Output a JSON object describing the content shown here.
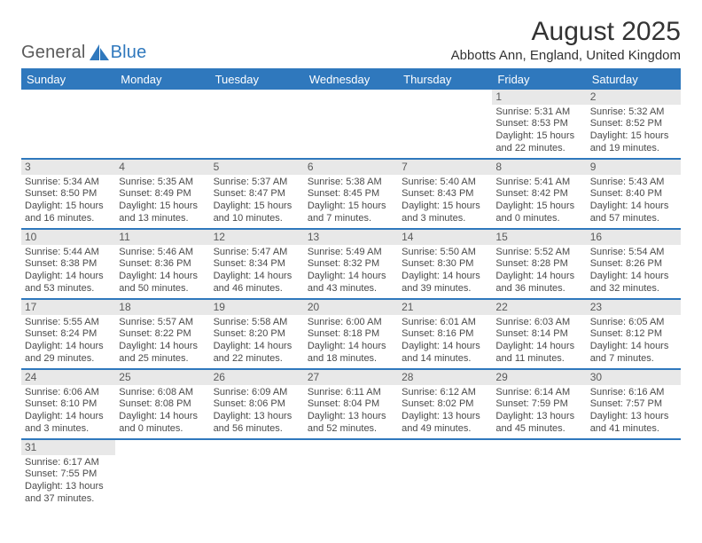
{
  "brand": {
    "text1": "General",
    "text2": "Blue",
    "mark_color": "#2f78bd"
  },
  "title": "August 2025",
  "location": "Abbotts Ann, England, United Kingdom",
  "colors": {
    "accent": "#2f78bd",
    "header_text": "#ffffff",
    "daynum_bg": "#e8e8e8",
    "text": "#4a4a4a"
  },
  "day_headers": [
    "Sunday",
    "Monday",
    "Tuesday",
    "Wednesday",
    "Thursday",
    "Friday",
    "Saturday"
  ],
  "weeks": [
    [
      null,
      null,
      null,
      null,
      null,
      {
        "n": "1",
        "sunrise": "Sunrise: 5:31 AM",
        "sunset": "Sunset: 8:53 PM",
        "daylight": "Daylight: 15 hours and 22 minutes."
      },
      {
        "n": "2",
        "sunrise": "Sunrise: 5:32 AM",
        "sunset": "Sunset: 8:52 PM",
        "daylight": "Daylight: 15 hours and 19 minutes."
      }
    ],
    [
      {
        "n": "3",
        "sunrise": "Sunrise: 5:34 AM",
        "sunset": "Sunset: 8:50 PM",
        "daylight": "Daylight: 15 hours and 16 minutes."
      },
      {
        "n": "4",
        "sunrise": "Sunrise: 5:35 AM",
        "sunset": "Sunset: 8:49 PM",
        "daylight": "Daylight: 15 hours and 13 minutes."
      },
      {
        "n": "5",
        "sunrise": "Sunrise: 5:37 AM",
        "sunset": "Sunset: 8:47 PM",
        "daylight": "Daylight: 15 hours and 10 minutes."
      },
      {
        "n": "6",
        "sunrise": "Sunrise: 5:38 AM",
        "sunset": "Sunset: 8:45 PM",
        "daylight": "Daylight: 15 hours and 7 minutes."
      },
      {
        "n": "7",
        "sunrise": "Sunrise: 5:40 AM",
        "sunset": "Sunset: 8:43 PM",
        "daylight": "Daylight: 15 hours and 3 minutes."
      },
      {
        "n": "8",
        "sunrise": "Sunrise: 5:41 AM",
        "sunset": "Sunset: 8:42 PM",
        "daylight": "Daylight: 15 hours and 0 minutes."
      },
      {
        "n": "9",
        "sunrise": "Sunrise: 5:43 AM",
        "sunset": "Sunset: 8:40 PM",
        "daylight": "Daylight: 14 hours and 57 minutes."
      }
    ],
    [
      {
        "n": "10",
        "sunrise": "Sunrise: 5:44 AM",
        "sunset": "Sunset: 8:38 PM",
        "daylight": "Daylight: 14 hours and 53 minutes."
      },
      {
        "n": "11",
        "sunrise": "Sunrise: 5:46 AM",
        "sunset": "Sunset: 8:36 PM",
        "daylight": "Daylight: 14 hours and 50 minutes."
      },
      {
        "n": "12",
        "sunrise": "Sunrise: 5:47 AM",
        "sunset": "Sunset: 8:34 PM",
        "daylight": "Daylight: 14 hours and 46 minutes."
      },
      {
        "n": "13",
        "sunrise": "Sunrise: 5:49 AM",
        "sunset": "Sunset: 8:32 PM",
        "daylight": "Daylight: 14 hours and 43 minutes."
      },
      {
        "n": "14",
        "sunrise": "Sunrise: 5:50 AM",
        "sunset": "Sunset: 8:30 PM",
        "daylight": "Daylight: 14 hours and 39 minutes."
      },
      {
        "n": "15",
        "sunrise": "Sunrise: 5:52 AM",
        "sunset": "Sunset: 8:28 PM",
        "daylight": "Daylight: 14 hours and 36 minutes."
      },
      {
        "n": "16",
        "sunrise": "Sunrise: 5:54 AM",
        "sunset": "Sunset: 8:26 PM",
        "daylight": "Daylight: 14 hours and 32 minutes."
      }
    ],
    [
      {
        "n": "17",
        "sunrise": "Sunrise: 5:55 AM",
        "sunset": "Sunset: 8:24 PM",
        "daylight": "Daylight: 14 hours and 29 minutes."
      },
      {
        "n": "18",
        "sunrise": "Sunrise: 5:57 AM",
        "sunset": "Sunset: 8:22 PM",
        "daylight": "Daylight: 14 hours and 25 minutes."
      },
      {
        "n": "19",
        "sunrise": "Sunrise: 5:58 AM",
        "sunset": "Sunset: 8:20 PM",
        "daylight": "Daylight: 14 hours and 22 minutes."
      },
      {
        "n": "20",
        "sunrise": "Sunrise: 6:00 AM",
        "sunset": "Sunset: 8:18 PM",
        "daylight": "Daylight: 14 hours and 18 minutes."
      },
      {
        "n": "21",
        "sunrise": "Sunrise: 6:01 AM",
        "sunset": "Sunset: 8:16 PM",
        "daylight": "Daylight: 14 hours and 14 minutes."
      },
      {
        "n": "22",
        "sunrise": "Sunrise: 6:03 AM",
        "sunset": "Sunset: 8:14 PM",
        "daylight": "Daylight: 14 hours and 11 minutes."
      },
      {
        "n": "23",
        "sunrise": "Sunrise: 6:05 AM",
        "sunset": "Sunset: 8:12 PM",
        "daylight": "Daylight: 14 hours and 7 minutes."
      }
    ],
    [
      {
        "n": "24",
        "sunrise": "Sunrise: 6:06 AM",
        "sunset": "Sunset: 8:10 PM",
        "daylight": "Daylight: 14 hours and 3 minutes."
      },
      {
        "n": "25",
        "sunrise": "Sunrise: 6:08 AM",
        "sunset": "Sunset: 8:08 PM",
        "daylight": "Daylight: 14 hours and 0 minutes."
      },
      {
        "n": "26",
        "sunrise": "Sunrise: 6:09 AM",
        "sunset": "Sunset: 8:06 PM",
        "daylight": "Daylight: 13 hours and 56 minutes."
      },
      {
        "n": "27",
        "sunrise": "Sunrise: 6:11 AM",
        "sunset": "Sunset: 8:04 PM",
        "daylight": "Daylight: 13 hours and 52 minutes."
      },
      {
        "n": "28",
        "sunrise": "Sunrise: 6:12 AM",
        "sunset": "Sunset: 8:02 PM",
        "daylight": "Daylight: 13 hours and 49 minutes."
      },
      {
        "n": "29",
        "sunrise": "Sunrise: 6:14 AM",
        "sunset": "Sunset: 7:59 PM",
        "daylight": "Daylight: 13 hours and 45 minutes."
      },
      {
        "n": "30",
        "sunrise": "Sunrise: 6:16 AM",
        "sunset": "Sunset: 7:57 PM",
        "daylight": "Daylight: 13 hours and 41 minutes."
      }
    ],
    [
      {
        "n": "31",
        "sunrise": "Sunrise: 6:17 AM",
        "sunset": "Sunset: 7:55 PM",
        "daylight": "Daylight: 13 hours and 37 minutes."
      },
      null,
      null,
      null,
      null,
      null,
      null
    ]
  ]
}
